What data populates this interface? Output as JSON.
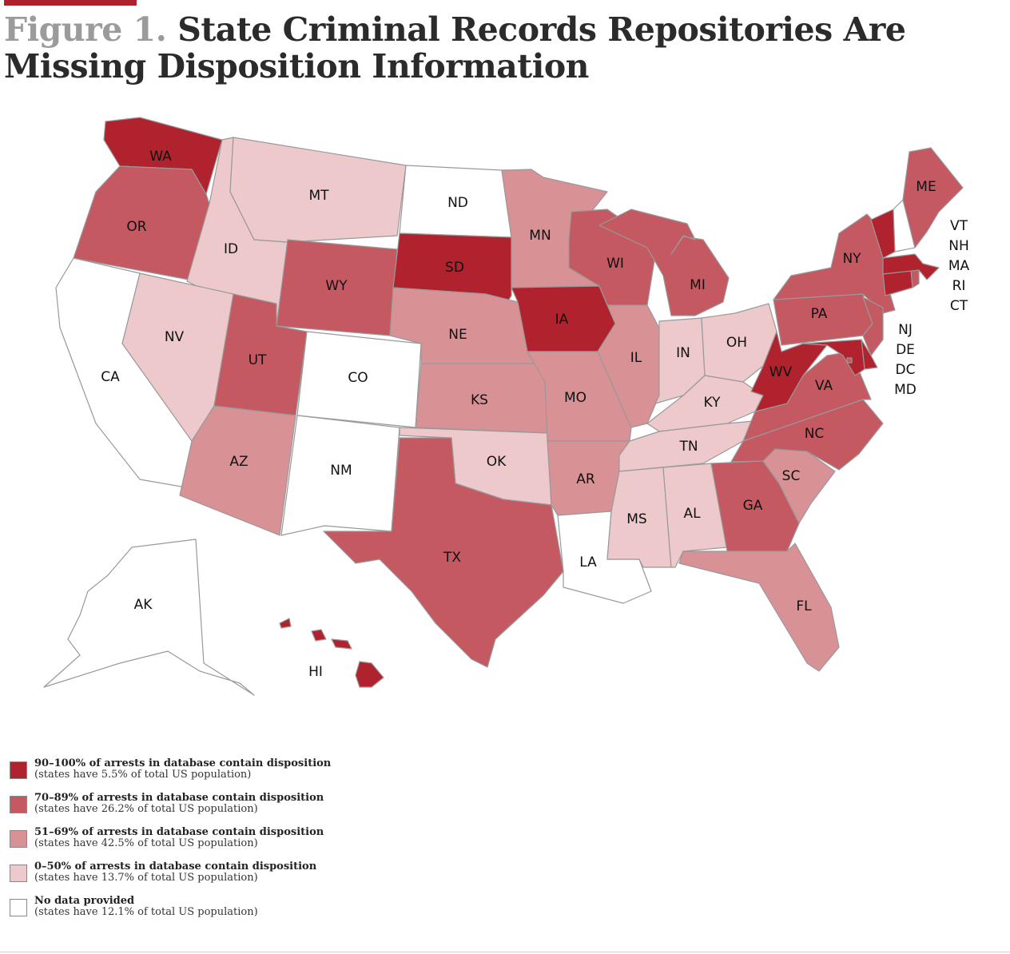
{
  "figure": {
    "label": "Figure 1.",
    "title": " State Criminal Records Repositories Are Missing Disposition Information"
  },
  "colors": {
    "tier_90_100": "#b0222d",
    "tier_70_89": "#c45962",
    "tier_51_69": "#d89194",
    "tier_0_50": "#eec9cb",
    "no_data": "#ffffff",
    "accent": "#b0212e"
  },
  "states": {
    "WA": "tier_90_100",
    "OR": "tier_70_89",
    "CA": "no_data",
    "ID": "tier_0_50",
    "MT": "tier_0_50",
    "NV": "tier_0_50",
    "UT": "tier_70_89",
    "AZ": "tier_51_69",
    "WY": "tier_70_89",
    "CO": "no_data",
    "NM": "no_data",
    "ND": "no_data",
    "SD": "tier_90_100",
    "NE": "tier_51_69",
    "KS": "tier_51_69",
    "OK": "tier_0_50",
    "TX": "tier_70_89",
    "MN": "tier_51_69",
    "IA": "tier_90_100",
    "MO": "tier_51_69",
    "AR": "tier_51_69",
    "LA": "no_data",
    "WI": "tier_70_89",
    "IL": "tier_51_69",
    "MI": "tier_70_89",
    "IN": "tier_0_50",
    "OH": "tier_0_50",
    "KY": "tier_0_50",
    "TN": "tier_0_50",
    "MS": "tier_0_50",
    "AL": "tier_0_50",
    "GA": "tier_70_89",
    "FL": "tier_51_69",
    "SC": "tier_51_69",
    "NC": "tier_70_89",
    "VA": "tier_70_89",
    "WV": "tier_90_100",
    "PA": "tier_70_89",
    "NY": "tier_70_89",
    "NJ": "tier_70_89",
    "DE": "tier_90_100",
    "MD": "tier_90_100",
    "DC": "tier_70_89",
    "CT": "tier_90_100",
    "RI": "tier_70_89",
    "MA": "tier_90_100",
    "VT": "tier_90_100",
    "NH": "no_data",
    "ME": "tier_70_89",
    "AK": "no_data",
    "HI": "tier_90_100"
  },
  "labels": {
    "WA": "WA",
    "OR": "OR",
    "CA": "CA",
    "ID": "ID",
    "MT": "MT",
    "NV": "NV",
    "UT": "UT",
    "AZ": "AZ",
    "WY": "WY",
    "CO": "CO",
    "NM": "NM",
    "ND": "ND",
    "SD": "SD",
    "NE": "NE",
    "KS": "KS",
    "OK": "OK",
    "TX": "TX",
    "MN": "MN",
    "IA": "IA",
    "MO": "MO",
    "AR": "AR",
    "LA": "LA",
    "WI": "WI",
    "IL": "IL",
    "MI": "MI",
    "IN": "IN",
    "OH": "OH",
    "KY": "KY",
    "TN": "TN",
    "MS": "MS",
    "AL": "AL",
    "GA": "GA",
    "FL": "FL",
    "SC": "SC",
    "NC": "NC",
    "VA": "VA",
    "WV": "WV",
    "PA": "PA",
    "NY": "NY",
    "ME": "ME",
    "AK": "AK",
    "HI": "HI"
  },
  "ne_labels_right": [
    "VT",
    "NH",
    "MA",
    "RI",
    "CT"
  ],
  "ne_labels_left": [
    "NJ",
    "DE",
    "DC",
    "MD"
  ],
  "legend": [
    {
      "key": "tier_90_100",
      "main": "90–100% of arrests in database contain disposition",
      "sub": "(states have 5.5% of total US population)"
    },
    {
      "key": "tier_70_89",
      "main": "70–89% of arrests in database contain disposition",
      "sub": "(states have 26.2% of total US population)"
    },
    {
      "key": "tier_51_69",
      "main": "51–69% of arrests in database contain disposition",
      "sub": "(states have 42.5% of total US population)"
    },
    {
      "key": "tier_0_50",
      "main": "0–50% of arrests in database contain disposition",
      "sub": "(states have 13.7% of total US population)"
    },
    {
      "key": "no_data",
      "main": "No data provided",
      "sub": "(states have 12.1% of total US population)"
    }
  ]
}
